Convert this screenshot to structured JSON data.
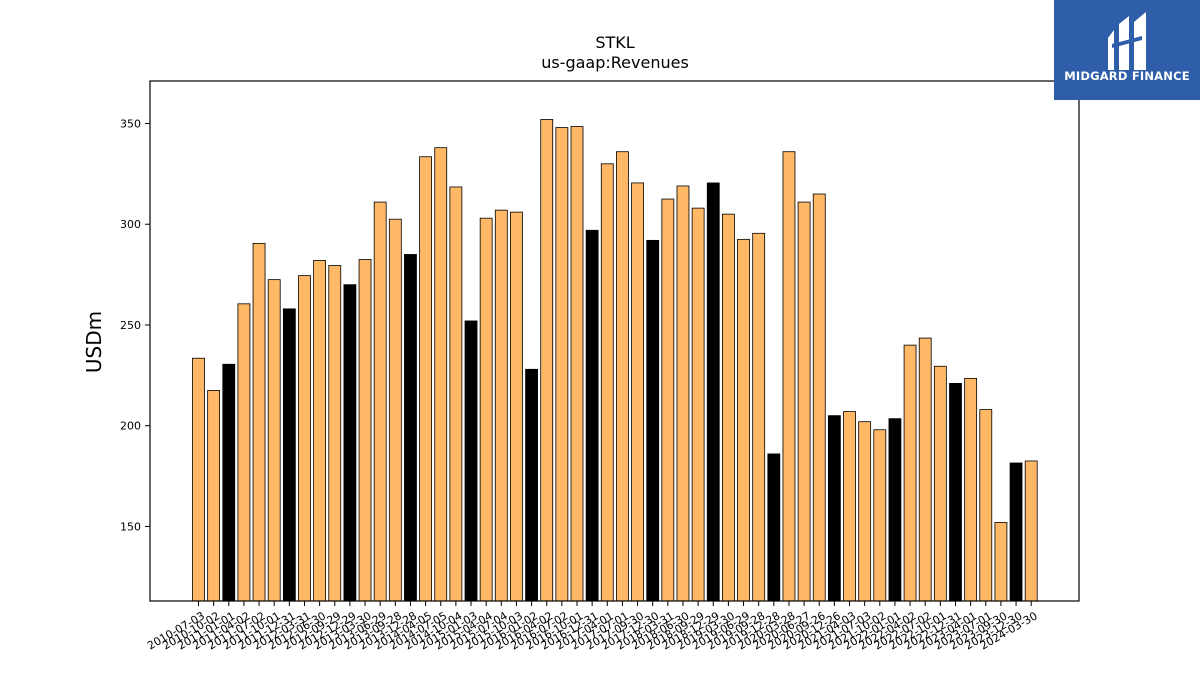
{
  "logo": {
    "text": "MIDGARD FINANCE"
  },
  "chart_data": {
    "type": "bar",
    "title": "STKL",
    "subtitle": "us-gaap:Revenues",
    "xlabel": "",
    "ylabel": "USDm",
    "ylim": [
      113,
      370
    ],
    "yticks": [
      150,
      200,
      250,
      300,
      350
    ],
    "colors": {
      "bar": "#ffb866",
      "highlight": "#000000",
      "edge": "#000000"
    },
    "categories": [
      "2010-07-03",
      "2010-10-02",
      "2011-01-01",
      "2011-04-02",
      "2011-07-02",
      "2011-10-01",
      "2011-12-31",
      "2012-03-31",
      "2012-06-30",
      "2012-09-29",
      "2012-12-29",
      "2013-03-30",
      "2013-06-29",
      "2013-09-28",
      "2013-12-28",
      "2014-04-05",
      "2014-07-05",
      "2014-10-04",
      "2015-01-03",
      "2015-04-04",
      "2015-07-04",
      "2015-10-03",
      "2016-01-02",
      "2016-04-02",
      "2016-07-02",
      "2016-10-01",
      "2016-12-31",
      "2017-04-01",
      "2017-07-01",
      "2017-09-30",
      "2017-12-30",
      "2018-03-31",
      "2018-06-30",
      "2018-09-29",
      "2018-12-29",
      "2019-03-30",
      "2019-06-29",
      "2019-09-28",
      "2019-12-28",
      "2020-03-28",
      "2020-06-27",
      "2020-09-26",
      "2020-12-26",
      "2021-04-03",
      "2021-07-03",
      "2021-10-02",
      "2022-01-01",
      "2022-04-02",
      "2022-07-02",
      "2022-10-01",
      "2022-12-31",
      "2023-04-01",
      "2023-07-01",
      "2023-09-30",
      "2023-12-30",
      "2024-03-30"
    ],
    "values": [
      233.5,
      217.5,
      230.5,
      260.5,
      290.5,
      272.5,
      258,
      274.5,
      282,
      279.5,
      270,
      282.5,
      311,
      302.5,
      285,
      333.5,
      338,
      318.5,
      252,
      303,
      307,
      306,
      228,
      352,
      348,
      348.5,
      297,
      330,
      336,
      320.5,
      292,
      312.5,
      319,
      308,
      320.5,
      305,
      292.5,
      295.5,
      186,
      336,
      311,
      315,
      205,
      207,
      202,
      198,
      203.5,
      240,
      243.5,
      229.5,
      221,
      223.5,
      208,
      152,
      181.5,
      182.5
    ],
    "highlighted": [
      false,
      false,
      true,
      false,
      false,
      false,
      true,
      false,
      false,
      false,
      true,
      false,
      false,
      false,
      true,
      false,
      false,
      false,
      true,
      false,
      false,
      false,
      true,
      false,
      false,
      false,
      true,
      false,
      false,
      false,
      true,
      false,
      false,
      false,
      true,
      false,
      false,
      false,
      true,
      false,
      false,
      false,
      true,
      false,
      false,
      false,
      true,
      false,
      false,
      false,
      true,
      false,
      false,
      false,
      true,
      false
    ]
  }
}
